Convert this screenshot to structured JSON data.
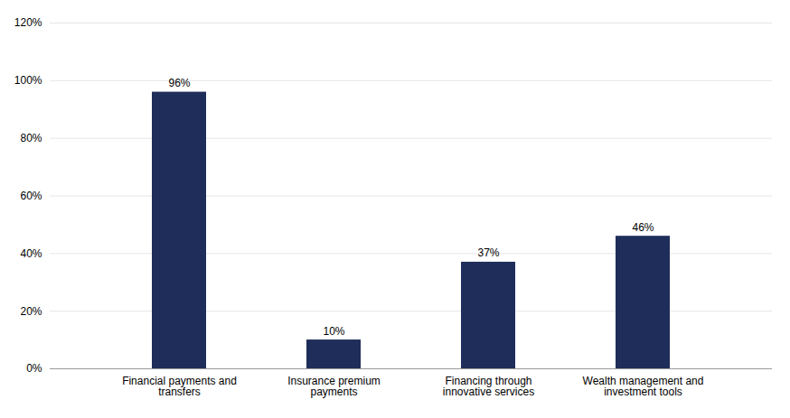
{
  "chart_data": {
    "type": "bar",
    "categories": [
      "Financial payments and\ntransfers",
      "Insurance premium\npayments",
      "Financing through\ninnovative services",
      "Wealth management and\ninvestment tools"
    ],
    "values": [
      96,
      10,
      37,
      46
    ],
    "value_labels": [
      "96%",
      "10%",
      "37%",
      "46%"
    ],
    "data_labels": true,
    "color": "#1F2D5A",
    "ylim": [
      0,
      120
    ],
    "yticks": [
      {
        "value": 0,
        "label": "0%"
      },
      {
        "value": 20,
        "label": "20%"
      },
      {
        "value": 40,
        "label": "40%"
      },
      {
        "value": 60,
        "label": "60%"
      },
      {
        "value": 80,
        "label": "80%"
      },
      {
        "value": 100,
        "label": "100%"
      },
      {
        "value": 120,
        "label": "120%"
      }
    ],
    "grid": true
  }
}
